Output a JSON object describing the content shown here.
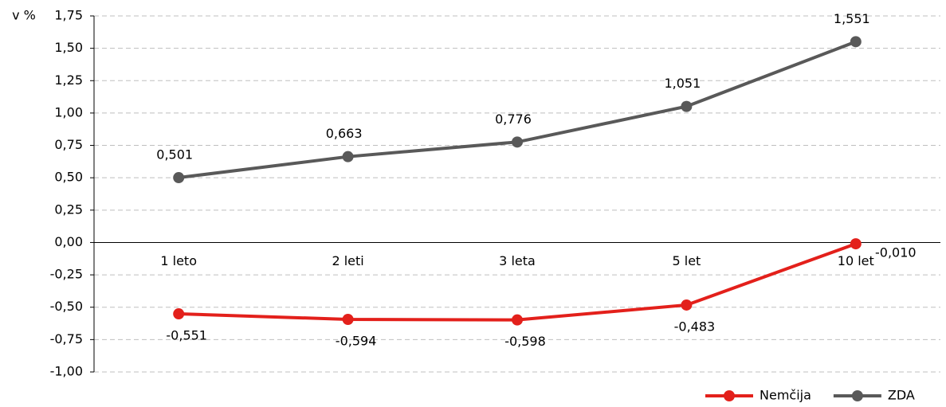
{
  "chart_data": {
    "type": "line",
    "ylabel": "v %",
    "categories": [
      "1 leto",
      "2 leti",
      "3 leta",
      "5 let",
      "10 let"
    ],
    "series": [
      {
        "name": "Nemčija",
        "color": "#e3201b",
        "values": [
          -0.551,
          -0.594,
          -0.598,
          -0.483,
          -0.01
        ],
        "value_labels": [
          "-0,551",
          "-0,594",
          "-0,598",
          "-0,483",
          "-0,010"
        ]
      },
      {
        "name": "ZDA",
        "color": "#595959",
        "values": [
          0.501,
          0.663,
          0.776,
          1.051,
          1.551
        ],
        "value_labels": [
          "0,501",
          "0,663",
          "0,776",
          "1,051",
          "1,551"
        ]
      }
    ],
    "ylim": [
      -1.0,
      1.75
    ],
    "yticks": [
      {
        "value": 1.75,
        "label": "1,75"
      },
      {
        "value": 1.5,
        "label": "1,50"
      },
      {
        "value": 1.25,
        "label": "1,25"
      },
      {
        "value": 1.0,
        "label": "1,00"
      },
      {
        "value": 0.75,
        "label": "0,75"
      },
      {
        "value": 0.5,
        "label": "0,50"
      },
      {
        "value": 0.25,
        "label": "0,25"
      },
      {
        "value": 0,
        "label": "0,00"
      },
      {
        "value": -0.25,
        "label": "-0,25"
      },
      {
        "value": -0.5,
        "label": "-0,50"
      },
      {
        "value": -0.75,
        "label": "-0,75"
      },
      {
        "value": -1.0,
        "label": "-1,00"
      }
    ],
    "grid": true,
    "legend": "bottom-right"
  }
}
